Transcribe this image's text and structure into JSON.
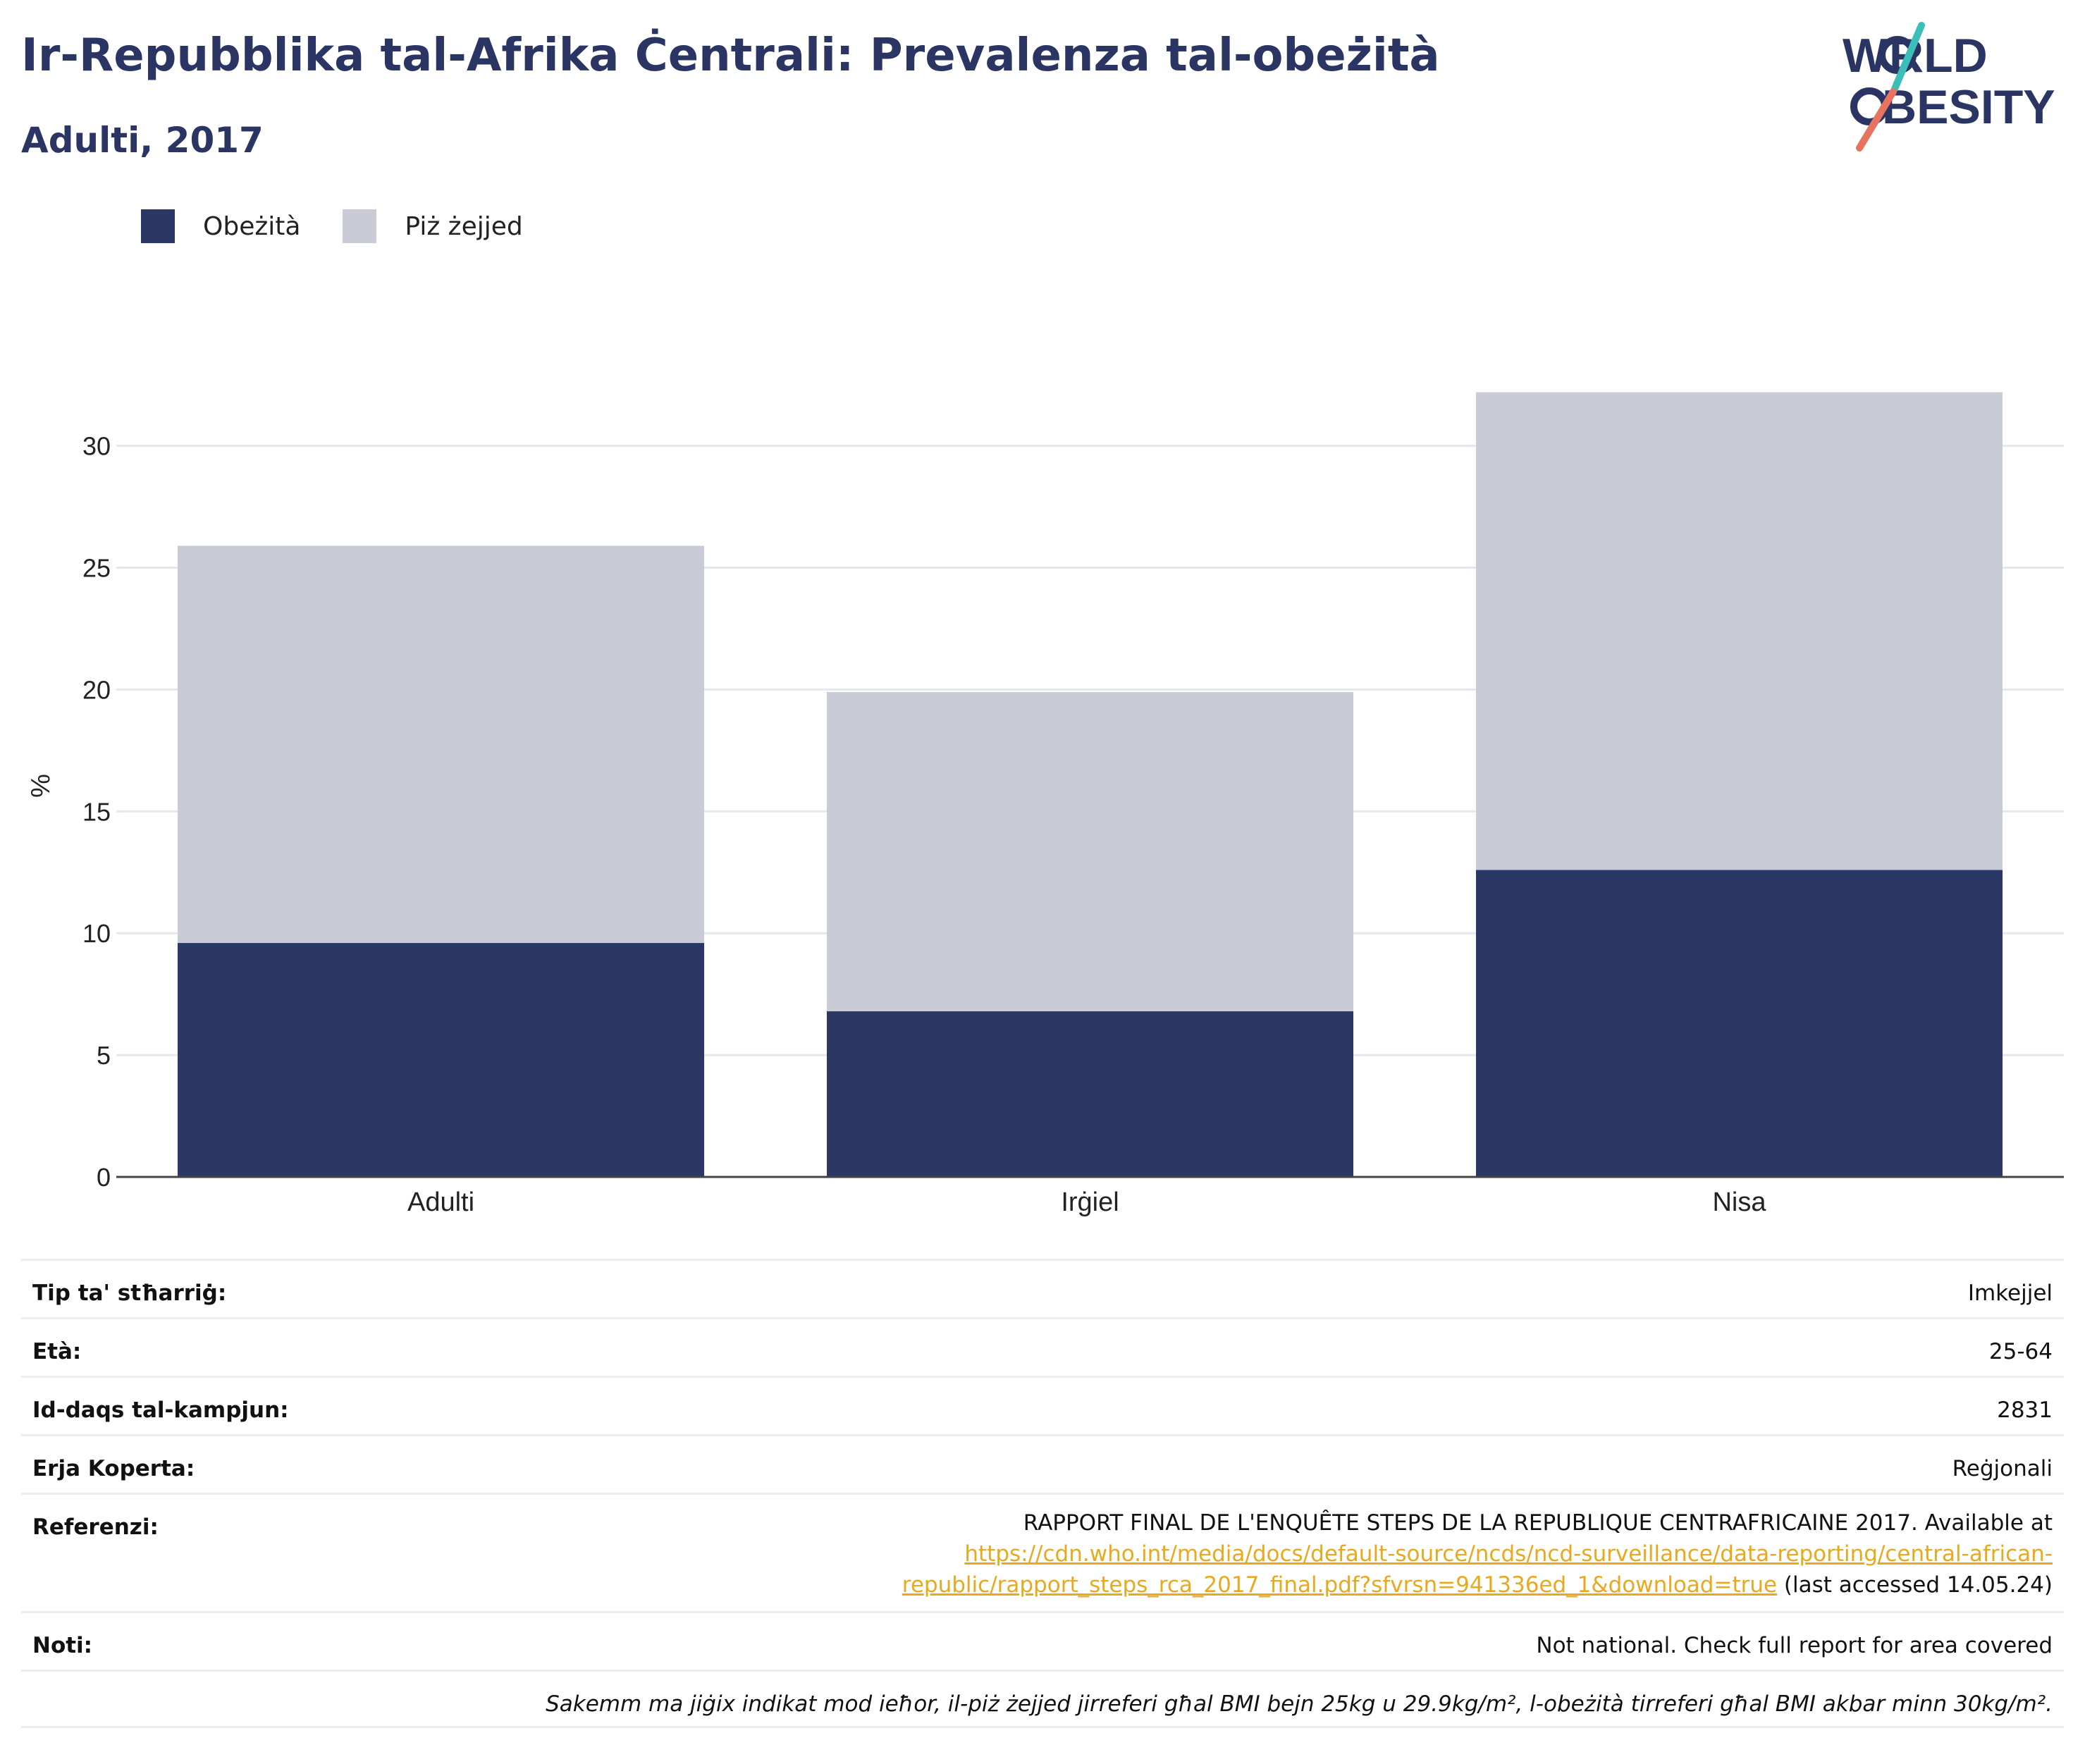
{
  "header": {
    "title": "Ir-Repubblika tal-Afrika Ċentrali: Prevalenza tal-obeżità",
    "subtitle": "Adulti, 2017"
  },
  "logo": {
    "line1": "WORLD",
    "line2": "OBESITY"
  },
  "colors": {
    "obesity": "#2b3764",
    "overweight": "#c9cbd6",
    "brand_teal": "#3bbfb8",
    "brand_coral": "#e8735e",
    "text_navy": "#2b3564",
    "link": "#e9a91f"
  },
  "chart_data": {
    "type": "bar",
    "stacked": true,
    "categories": [
      "Adulti",
      "Irġiel",
      "Nisa"
    ],
    "series": [
      {
        "name": "Obeżità",
        "values": [
          9.6,
          6.8,
          12.6
        ]
      },
      {
        "name": "Piż żejjed",
        "values": [
          16.3,
          13.1,
          19.6
        ]
      }
    ],
    "ylabel": "%",
    "ylim": [
      0,
      32.1
    ],
    "yticks": [
      0,
      5,
      10,
      15,
      20,
      25,
      30
    ],
    "grid": true,
    "legend_position": "top-left"
  },
  "info": {
    "survey_type_label": "Tip ta' stħarriġ:",
    "survey_type_value": "Imkejjel",
    "age_label": "Età:",
    "age_value": "25-64",
    "sample_label": "Id-daqs tal-kampjun:",
    "sample_value": "2831",
    "area_label": "Erja Koperta:",
    "area_value": "Reġjonali",
    "ref_label": "Referenzi:",
    "ref_text": "RAPPORT FINAL DE L'ENQUÊTE STEPS DE LA REPUBLIQUE CENTRAFRICAINE 2017. Available at",
    "ref_link_1": "https://cdn.who.int/media/docs/default-source/ncds/ncd-surveillance/data-reporting/central-african-",
    "ref_link_2": "republic/rapport_steps_rca_2017_final.pdf?sfvrsn=941336ed_1&download=true",
    "ref_accessed": " (last accessed 14.05.24)",
    "notes_label": "Noti:",
    "notes_value": "Not national. Check full report for area covered",
    "footnote": "Sakemm ma jiġix indikat mod ieħor, il-piż żejjed jirreferi għal BMI bejn 25kg u 29.9kg/m², l-obeżità tirreferi għal BMI akbar minn 30kg/m²."
  }
}
